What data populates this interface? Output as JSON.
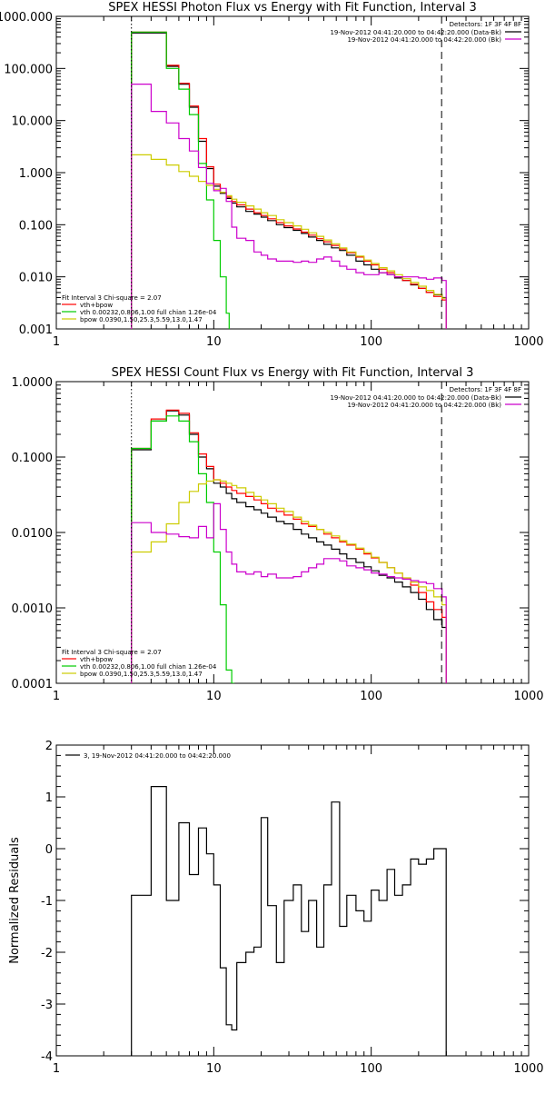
{
  "chart_data": [
    {
      "type": "line",
      "title": "SPEX HESSI Photon Flux vs Energy with Fit Function, Interval 3",
      "xscale": "log",
      "yscale": "log",
      "xlim": [
        1,
        1000
      ],
      "ylim": [
        0.001,
        1000
      ],
      "x_ticks": [
        {
          "v": 1,
          "label": "1"
        },
        {
          "v": 10,
          "label": "10"
        },
        {
          "v": 100,
          "label": "100"
        },
        {
          "v": 1000,
          "label": "1000"
        }
      ],
      "y_ticks": [
        {
          "v": 0.001,
          "label": "0.001"
        },
        {
          "v": 0.01,
          "label": "0.010"
        },
        {
          "v": 0.1,
          "label": "0.100"
        },
        {
          "v": 1,
          "label": "1.000"
        },
        {
          "v": 10,
          "label": "10.000"
        },
        {
          "v": 100,
          "label": "100.000"
        },
        {
          "v": 1000,
          "label": "1000.000"
        }
      ],
      "vlines": [
        {
          "x": 3,
          "style": "dotted"
        },
        {
          "x": 280,
          "style": "dashed"
        }
      ],
      "legend_tr": {
        "position": "top-right",
        "header": "Detectors: 1F 3F 4F 8F",
        "lines": [
          {
            "text": "19-Nov-2012 04:41:20.000 to 04:42:20.000 (Data-Bk)",
            "color": "#000000"
          },
          {
            "text": "19-Nov-2012 04:41:20.000 to 04:42:20.000 (Bk)",
            "color": "#cc00cc"
          }
        ]
      },
      "legend_bl": {
        "position": "bottom-left",
        "header": "Fit Interval 3   Chi-square = 2.07",
        "lines": [
          {
            "text": "vth+bpow",
            "color": "#ff0000"
          },
          {
            "text": "vth 0.00232,0.806,1.00  full chian 1.26e-04",
            "color": "#00cc00"
          },
          {
            "text": "bpow 0.0390,1.50,25.3,5.59,13.0,1.47",
            "color": "#cccc00"
          }
        ]
      },
      "series": [
        {
          "name": "19-Nov-2012 04:41:20.000 to 04:42:20.000 (Data-Bk)",
          "color": "#000000",
          "x": [
            3,
            4,
            5,
            6,
            7,
            8,
            9,
            10,
            11,
            12,
            13,
            14,
            16,
            18,
            20,
            22,
            25,
            28,
            32,
            36,
            40,
            45,
            50,
            56,
            63,
            70,
            80,
            90,
            100,
            112,
            126,
            141,
            158,
            178,
            200,
            224,
            250,
            282
          ],
          "y": [
            480,
            480,
            110,
            50,
            18,
            4,
            1.2,
            0.55,
            0.4,
            0.32,
            0.26,
            0.22,
            0.18,
            0.16,
            0.14,
            0.12,
            0.1,
            0.088,
            0.078,
            0.068,
            0.058,
            0.05,
            0.042,
            0.036,
            0.032,
            0.026,
            0.02,
            0.017,
            0.014,
            0.012,
            0.011,
            0.0095,
            0.0085,
            0.007,
            0.006,
            0.005,
            0.0045,
            0.004
          ]
        },
        {
          "name": "vth+bpow",
          "color": "#ff0000",
          "x": [
            3,
            4,
            5,
            6,
            7,
            8,
            9,
            10,
            11,
            12,
            13,
            14,
            16,
            18,
            20,
            22,
            25,
            28,
            32,
            36,
            40,
            45,
            50,
            56,
            63,
            70,
            80,
            90,
            100,
            112,
            126,
            141,
            158,
            178,
            200,
            224,
            250,
            282
          ],
          "y": [
            500,
            500,
            115,
            52,
            19,
            4.5,
            1.3,
            0.6,
            0.42,
            0.34,
            0.28,
            0.24,
            0.2,
            0.17,
            0.15,
            0.13,
            0.11,
            0.095,
            0.083,
            0.072,
            0.063,
            0.054,
            0.047,
            0.04,
            0.034,
            0.029,
            0.024,
            0.02,
            0.017,
            0.014,
            0.012,
            0.01,
            0.0085,
            0.0072,
            0.006,
            0.005,
            0.0042,
            0.0036
          ]
        },
        {
          "name": "vth 0.00232,0.806,1.00  full chian 1.26e-04",
          "color": "#00cc00",
          "x": [
            3,
            4,
            5,
            6,
            7,
            8,
            9,
            10,
            11,
            12
          ],
          "y": [
            500,
            500,
            100,
            40,
            13,
            1.5,
            0.3,
            0.05,
            0.01,
            0.002
          ]
        },
        {
          "name": "bpow 0.0390,1.50,25.3,5.59,13.0,1.47",
          "color": "#cccc00",
          "x": [
            3,
            4,
            5,
            6,
            7,
            8,
            9,
            10,
            11,
            12,
            13,
            14,
            16,
            18,
            20,
            22,
            25,
            28,
            32,
            36,
            40,
            45,
            50,
            56,
            63,
            70,
            80,
            90,
            100,
            112,
            126,
            141,
            158,
            178,
            200,
            224,
            250,
            282
          ],
          "y": [
            2.2,
            1.8,
            1.4,
            1.05,
            0.85,
            0.68,
            0.57,
            0.48,
            0.42,
            0.36,
            0.31,
            0.27,
            0.23,
            0.2,
            0.17,
            0.15,
            0.125,
            0.11,
            0.095,
            0.082,
            0.07,
            0.06,
            0.051,
            0.043,
            0.036,
            0.03,
            0.025,
            0.021,
            0.018,
            0.015,
            0.013,
            0.011,
            0.0092,
            0.0078,
            0.0066,
            0.0055,
            0.0046,
            0.0039
          ]
        },
        {
          "name": "19-Nov-2012 04:41:20.000 to 04:42:20.000 (Bk)",
          "color": "#cc00cc",
          "x": [
            3,
            4,
            5,
            6,
            7,
            8,
            9,
            10,
            11,
            12,
            13,
            14,
            16,
            18,
            20,
            22,
            25,
            28,
            32,
            36,
            40,
            45,
            50,
            56,
            63,
            70,
            80,
            90,
            100,
            112,
            126,
            141,
            158,
            178,
            200,
            224,
            250,
            282
          ],
          "y": [
            50,
            15,
            9,
            4.5,
            2.6,
            1.25,
            0.62,
            0.45,
            0.5,
            0.28,
            0.09,
            0.055,
            0.05,
            0.03,
            0.026,
            0.022,
            0.02,
            0.02,
            0.019,
            0.02,
            0.019,
            0.022,
            0.024,
            0.02,
            0.016,
            0.014,
            0.012,
            0.011,
            0.011,
            0.012,
            0.011,
            0.01,
            0.01,
            0.01,
            0.0095,
            0.009,
            0.0095,
            0.0085
          ]
        }
      ]
    },
    {
      "type": "line",
      "title": "SPEX HESSI Count Flux vs Energy with Fit Function, Interval 3",
      "xscale": "log",
      "yscale": "log",
      "xlim": [
        1,
        1000
      ],
      "ylim": [
        0.0001,
        1
      ],
      "x_ticks": [
        {
          "v": 1,
          "label": "1"
        },
        {
          "v": 10,
          "label": "10"
        },
        {
          "v": 100,
          "label": "100"
        },
        {
          "v": 1000,
          "label": "1000"
        }
      ],
      "y_ticks": [
        {
          "v": 0.0001,
          "label": "0.0001"
        },
        {
          "v": 0.001,
          "label": "0.0010"
        },
        {
          "v": 0.01,
          "label": "0.0100"
        },
        {
          "v": 0.1,
          "label": "0.1000"
        },
        {
          "v": 1,
          "label": "1.0000"
        }
      ],
      "vlines": [
        {
          "x": 3,
          "style": "dotted"
        },
        {
          "x": 280,
          "style": "dashed"
        }
      ],
      "legend_tr": {
        "position": "top-right",
        "header": "Detectors: 1F 3F 4F 8F",
        "lines": [
          {
            "text": "19-Nov-2012 04:41:20.000 to 04:42:20.000 (Data-Bk)",
            "color": "#000000"
          },
          {
            "text": "19-Nov-2012 04:41:20.000 to 04:42:20.000 (Bk)",
            "color": "#cc00cc"
          }
        ]
      },
      "legend_bl": {
        "position": "bottom-left",
        "header": "Fit Interval 3   Chi-square = 2.07",
        "lines": [
          {
            "text": "vth+bpow",
            "color": "#ff0000"
          },
          {
            "text": "vth 0.00232,0.806,1.00  full chian 1.26e-04",
            "color": "#00cc00"
          },
          {
            "text": "bpow 0.0390,1.50,25.3,5.59,13.0,1.47",
            "color": "#cccc00"
          }
        ]
      },
      "series": [
        {
          "name": "19-Nov-2012 04:41:20.000 to 04:42:20.000 (Data-Bk)",
          "color": "#000000",
          "x": [
            3,
            4,
            5,
            6,
            7,
            8,
            9,
            10,
            11,
            12,
            13,
            14,
            16,
            18,
            20,
            22,
            25,
            28,
            32,
            36,
            40,
            45,
            50,
            56,
            63,
            70,
            80,
            90,
            100,
            112,
            126,
            141,
            158,
            178,
            200,
            224,
            250,
            282
          ],
          "y": [
            0.125,
            0.3,
            0.41,
            0.36,
            0.2,
            0.1,
            0.07,
            0.045,
            0.04,
            0.033,
            0.028,
            0.025,
            0.022,
            0.02,
            0.018,
            0.016,
            0.014,
            0.013,
            0.011,
            0.0095,
            0.0085,
            0.0075,
            0.0068,
            0.006,
            0.0052,
            0.0045,
            0.004,
            0.0035,
            0.0031,
            0.0027,
            0.0025,
            0.0022,
            0.0019,
            0.0016,
            0.0013,
            0.00095,
            0.0007,
            0.00055
          ]
        },
        {
          "name": "vth+bpow",
          "color": "#ff0000",
          "x": [
            3,
            4,
            5,
            6,
            7,
            8,
            9,
            10,
            11,
            12,
            13,
            14,
            16,
            18,
            20,
            22,
            25,
            28,
            32,
            36,
            40,
            45,
            50,
            56,
            63,
            70,
            80,
            90,
            100,
            112,
            126,
            141,
            158,
            178,
            200,
            224,
            250,
            282
          ],
          "y": [
            0.13,
            0.32,
            0.42,
            0.38,
            0.21,
            0.11,
            0.075,
            0.05,
            0.045,
            0.04,
            0.036,
            0.033,
            0.03,
            0.027,
            0.024,
            0.021,
            0.019,
            0.017,
            0.015,
            0.013,
            0.012,
            0.011,
            0.0095,
            0.0085,
            0.0075,
            0.0068,
            0.006,
            0.0052,
            0.0046,
            0.004,
            0.0034,
            0.0029,
            0.0024,
            0.002,
            0.0016,
            0.0012,
            0.00095,
            0.00075
          ]
        },
        {
          "name": "vth 0.00232,0.806,1.00  full chian 1.26e-04",
          "color": "#00cc00",
          "x": [
            3,
            4,
            5,
            6,
            7,
            8,
            9,
            10,
            11,
            12,
            13
          ],
          "y": [
            0.13,
            0.3,
            0.35,
            0.3,
            0.16,
            0.06,
            0.025,
            0.0055,
            0.0011,
            0.00015,
            0.0001
          ]
        },
        {
          "name": "bpow 0.0390,1.50,25.3,5.59,13.0,1.47",
          "color": "#cccc00",
          "x": [
            3,
            4,
            5,
            6,
            7,
            8,
            9,
            10,
            11,
            12,
            13,
            14,
            16,
            18,
            20,
            22,
            25,
            28,
            32,
            36,
            40,
            45,
            50,
            56,
            63,
            70,
            80,
            90,
            100,
            112,
            126,
            141,
            158,
            178,
            200,
            224,
            250,
            282
          ],
          "y": [
            0.0055,
            0.0075,
            0.013,
            0.025,
            0.035,
            0.044,
            0.048,
            0.05,
            0.048,
            0.045,
            0.042,
            0.039,
            0.034,
            0.03,
            0.027,
            0.024,
            0.021,
            0.019,
            0.016,
            0.014,
            0.0125,
            0.011,
            0.01,
            0.009,
            0.0078,
            0.007,
            0.0062,
            0.0054,
            0.0047,
            0.004,
            0.0034,
            0.0029,
            0.0025,
            0.0022,
            0.0019,
            0.0017,
            0.0014,
            0.0011
          ]
        },
        {
          "name": "19-Nov-2012 04:41:20.000 to 04:42:20.000 (Bk)",
          "color": "#cc00cc",
          "x": [
            3,
            4,
            5,
            6,
            7,
            8,
            9,
            10,
            11,
            12,
            13,
            14,
            16,
            18,
            20,
            22,
            25,
            28,
            32,
            36,
            40,
            45,
            50,
            56,
            63,
            70,
            80,
            90,
            100,
            112,
            126,
            141,
            158,
            178,
            200,
            224,
            250,
            282
          ],
          "y": [
            0.0135,
            0.01,
            0.0095,
            0.0088,
            0.0085,
            0.012,
            0.0085,
            0.024,
            0.011,
            0.0055,
            0.0038,
            0.003,
            0.0028,
            0.003,
            0.0026,
            0.0028,
            0.0025,
            0.0025,
            0.0026,
            0.003,
            0.0034,
            0.0038,
            0.0045,
            0.0045,
            0.0042,
            0.0036,
            0.0034,
            0.0032,
            0.0029,
            0.0028,
            0.0026,
            0.0025,
            0.0024,
            0.0023,
            0.0022,
            0.0021,
            0.0018,
            0.0014
          ]
        }
      ]
    },
    {
      "type": "line",
      "title": "",
      "ylabel": "Normalized Residuals",
      "xscale": "log",
      "yscale": "linear",
      "xlim": [
        1,
        1000
      ],
      "ylim": [
        -4,
        2
      ],
      "x_ticks": [
        {
          "v": 1,
          "label": "1"
        },
        {
          "v": 10,
          "label": "10"
        },
        {
          "v": 100,
          "label": "100"
        },
        {
          "v": 1000,
          "label": "1000"
        }
      ],
      "y_ticks": [
        {
          "v": -4,
          "label": "-4"
        },
        {
          "v": -3,
          "label": "-3"
        },
        {
          "v": -2,
          "label": "-2"
        },
        {
          "v": -1,
          "label": "-1"
        },
        {
          "v": 0,
          "label": "0"
        },
        {
          "v": 1,
          "label": "1"
        },
        {
          "v": 2,
          "label": "2"
        }
      ],
      "vlines": [],
      "legend_tl": {
        "position": "top-left",
        "text": "3, 19-Nov-2012 04:41:20.000 to 04:42:20.000"
      },
      "series": [
        {
          "name": "3, 19-Nov-2012 04:41:20.000 to 04:42:20.000",
          "color": "#000000",
          "x": [
            3,
            4,
            5,
            6,
            7,
            8,
            9,
            10,
            11,
            12,
            13,
            14,
            16,
            18,
            20,
            22,
            25,
            28,
            32,
            36,
            40,
            45,
            50,
            56,
            63,
            70,
            80,
            90,
            100,
            112,
            126,
            141,
            158,
            178,
            200,
            224,
            250,
            282
          ],
          "y": [
            -0.9,
            1.2,
            -1.0,
            0.5,
            -0.5,
            0.4,
            -0.1,
            -0.7,
            -2.3,
            -3.4,
            -3.5,
            -2.2,
            -2.0,
            -1.9,
            0.6,
            -1.1,
            -2.2,
            -1.0,
            -0.7,
            -1.6,
            -1.0,
            -1.9,
            -0.7,
            0.9,
            -1.5,
            -0.9,
            -1.2,
            -1.4,
            -0.8,
            -1.0,
            -0.4,
            -0.9,
            -0.7,
            -0.2,
            -0.3,
            -0.2,
            0.0,
            0.0
          ]
        }
      ]
    }
  ]
}
